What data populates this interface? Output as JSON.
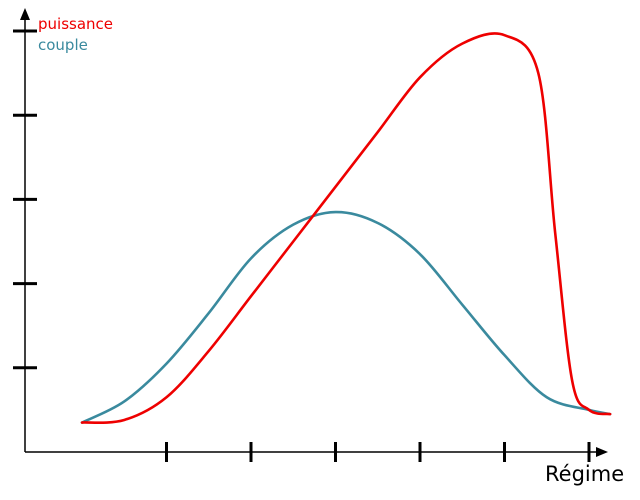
{
  "chart_data": {
    "type": "line",
    "title": "",
    "xlabel": "Régime",
    "ylabel": "",
    "grid": false,
    "legend_position": "top-left",
    "x_tick_count": 6,
    "y_tick_count": 5,
    "xlim": [
      0,
      7
    ],
    "ylim": [
      0,
      5
    ],
    "series": [
      {
        "name": "puissance",
        "color": "#ee0000",
        "x": [
          0.0,
          0.5,
          1.0,
          1.5,
          2.0,
          2.5,
          3.0,
          3.5,
          4.0,
          4.5,
          5.0,
          5.4,
          5.6,
          5.8,
          6.0,
          6.25
        ],
        "y": [
          0.35,
          0.38,
          0.65,
          1.2,
          1.85,
          2.5,
          3.15,
          3.8,
          4.45,
          4.85,
          4.95,
          4.5,
          2.6,
          0.85,
          0.5,
          0.45
        ]
      },
      {
        "name": "couple",
        "color": "#3a8a9e",
        "x": [
          0.0,
          0.5,
          1.0,
          1.5,
          2.0,
          2.5,
          3.0,
          3.5,
          4.0,
          4.5,
          5.0,
          5.5,
          6.0,
          6.25
        ],
        "y": [
          0.35,
          0.6,
          1.05,
          1.65,
          2.3,
          2.7,
          2.85,
          2.72,
          2.35,
          1.75,
          1.15,
          0.65,
          0.5,
          0.45
        ]
      }
    ]
  }
}
